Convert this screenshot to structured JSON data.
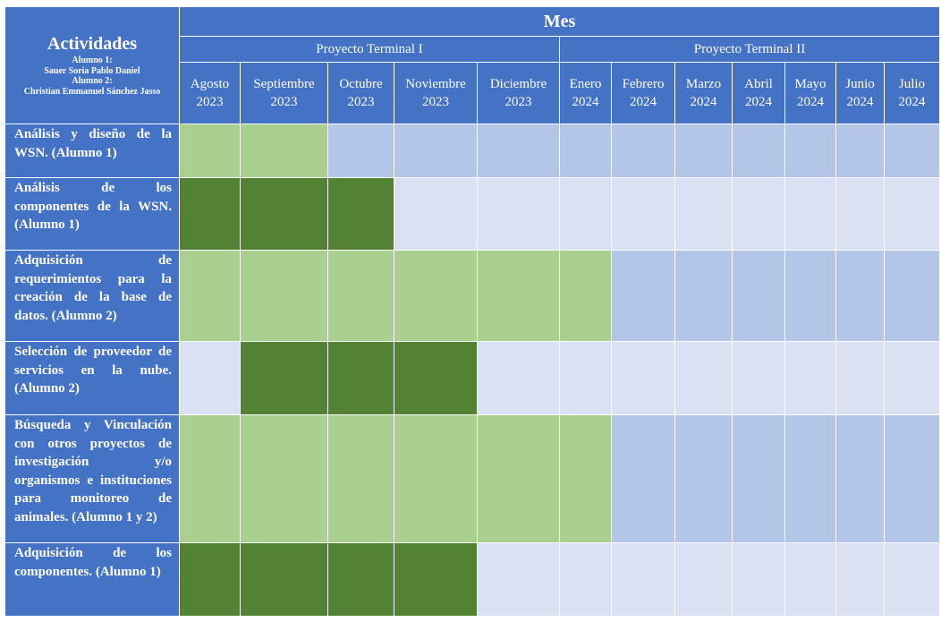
{
  "header": {
    "activities_title": "Actividades",
    "students": [
      "Alumno 1:",
      "Sauer Soria Pablo Daniel",
      "Alumno 2:",
      "Christian Emmanuel Sánchez Jasso"
    ],
    "month_header": "Mes",
    "projects": [
      {
        "label": "Proyecto Terminal I",
        "span_months": 5
      },
      {
        "label": "Proyecto Terminal II",
        "span_months": 7
      }
    ],
    "months": [
      {
        "name": "Agosto",
        "year": "2023"
      },
      {
        "name": "Septiembre",
        "year": "2023"
      },
      {
        "name": "Octubre",
        "year": "2023"
      },
      {
        "name": "Noviembre",
        "year": "2023"
      },
      {
        "name": "Diciembre",
        "year": "2023"
      },
      {
        "name": "Enero",
        "year": "2024"
      },
      {
        "name": "Febrero",
        "year": "2024"
      },
      {
        "name": "Marzo",
        "year": "2024"
      },
      {
        "name": "Abril",
        "year": "2024"
      },
      {
        "name": "Mayo",
        "year": "2024"
      },
      {
        "name": "Junio",
        "year": "2024"
      },
      {
        "name": "Julio",
        "year": "2024"
      }
    ]
  },
  "colors": {
    "header": "#4472c4",
    "active_light": "#a9d08e",
    "active_dark": "#548235",
    "idle_blue": "#b4c6e7",
    "idle_pale": "#d9e1f2"
  },
  "activities": [
    {
      "label": "Análisis y diseño de la WSN. (Alumno 1)",
      "cells": [
        "light",
        "light",
        "blue",
        "blue",
        "blue",
        "blue",
        "blue",
        "blue",
        "blue",
        "blue",
        "blue",
        "blue"
      ]
    },
    {
      "label": "Análisis de los componentes de la WSN. (Alumno 1)",
      "cells": [
        "dark",
        "dark",
        "dark",
        "pale",
        "pale",
        "pale",
        "pale",
        "pale",
        "pale",
        "pale",
        "pale",
        "pale"
      ]
    },
    {
      "label": "Adquisición de requerimientos para la creación de la base de datos. (Alumno 2)",
      "cells": [
        "light",
        "light",
        "light",
        "light",
        "light",
        "light",
        "blue",
        "blue",
        "blue",
        "blue",
        "blue",
        "blue"
      ]
    },
    {
      "label": "Selección de proveedor de servicios en la nube. (Alumno 2)",
      "cells": [
        "pale",
        "dark",
        "dark",
        "dark",
        "pale",
        "pale",
        "pale",
        "pale",
        "pale",
        "pale",
        "pale",
        "pale"
      ]
    },
    {
      "label": "Búsqueda y Vinculación con otros proyectos de investigación y/o organismos e instituciones para monitoreo de animales. (Alumno 1 y 2)",
      "cells": [
        "light",
        "light",
        "light",
        "light",
        "light",
        "light",
        "blue",
        "blue",
        "blue",
        "blue",
        "blue",
        "blue"
      ]
    },
    {
      "label": "Adquisición de los componentes. (Alumno 1)",
      "cells": [
        "dark",
        "dark",
        "dark",
        "dark",
        "pale",
        "pale",
        "pale",
        "pale",
        "pale",
        "pale",
        "pale",
        "pale"
      ]
    }
  ]
}
